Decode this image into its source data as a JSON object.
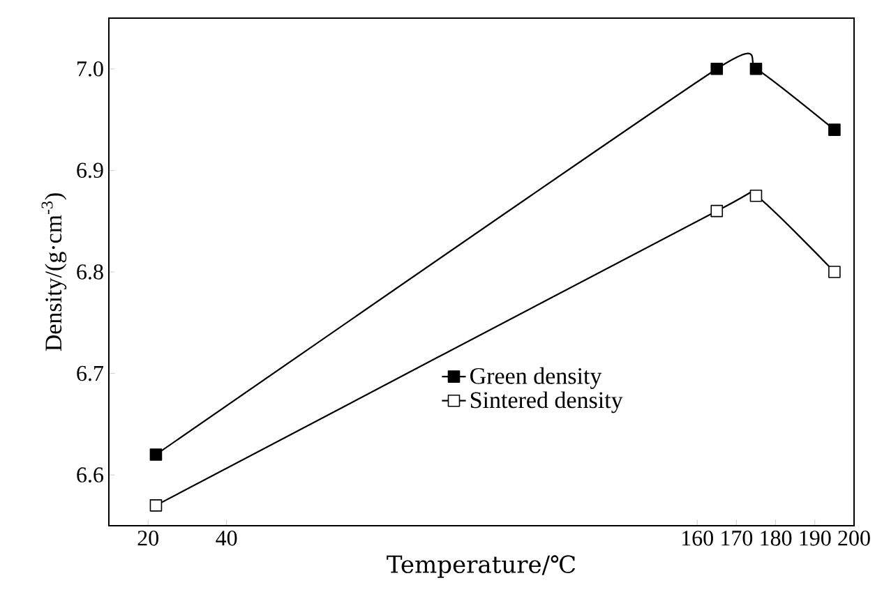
{
  "chart_data": {
    "type": "line",
    "xlabel": "Temperature/℃",
    "ylabel": "Density/(g·cm$^{-3}$)",
    "x": [
      22,
      165,
      175,
      195
    ],
    "series": [
      {
        "name": "Green density",
        "color": "#000000",
        "values": [
          6.62,
          7.0,
          7.0,
          6.94
        ]
      },
      {
        "name": "Sintered density",
        "color": "#000000",
        "values": [
          6.57,
          6.86,
          6.875,
          6.8
        ]
      }
    ],
    "xlim": [
      10,
      200
    ],
    "xticks": [
      20,
      40,
      160,
      170,
      180,
      190,
      200
    ],
    "ylim": [
      6.55,
      7.05
    ],
    "yticks": [
      6.6,
      6.7,
      6.8,
      6.9,
      {
        "value": 7.0,
        "label": "7.0"
      }
    ],
    "legend": "right",
    "marker": "square",
    "line_style": "solid"
  }
}
